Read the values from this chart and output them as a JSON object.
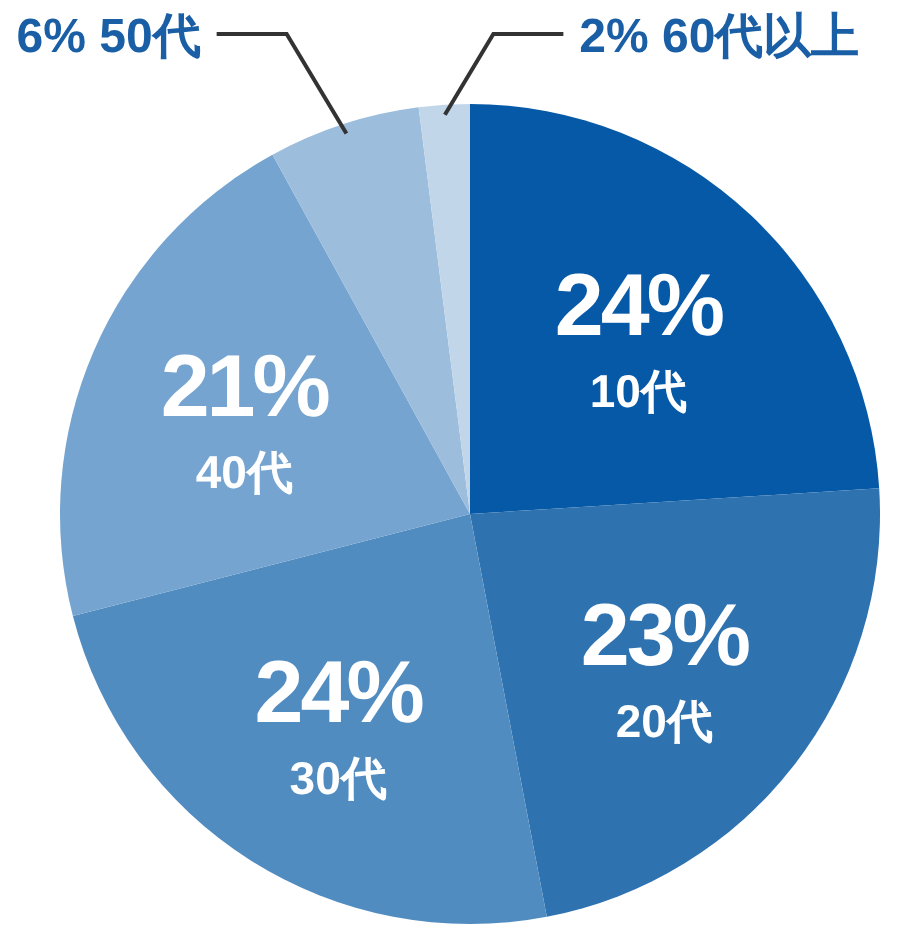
{
  "chart_data": {
    "type": "pie",
    "categories": [
      "10代",
      "20代",
      "30代",
      "40代",
      "50代",
      "60代以上"
    ],
    "values": [
      24,
      23,
      24,
      21,
      6,
      2
    ],
    "colors": [
      "#0659a6",
      "#2e72b0",
      "#518cc1",
      "#74a4cf",
      "#9dbddc",
      "#c2d6ea"
    ],
    "value_labels": [
      "24%",
      "23%",
      "24%",
      "21%",
      "6%",
      "2%"
    ]
  }
}
